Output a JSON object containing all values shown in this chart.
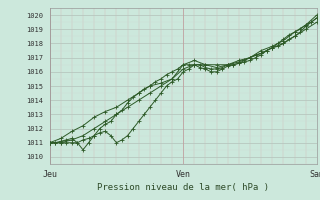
{
  "title": "",
  "xlabel": "Pression niveau de la mer( hPa )",
  "ylabel": "",
  "background_color": "#cce8dc",
  "plot_bg_color": "#cce8dc",
  "line_color": "#2d5a27",
  "ylim": [
    1009.5,
    1020.5
  ],
  "xlim": [
    0,
    48
  ],
  "xtick_positions": [
    0,
    24,
    48
  ],
  "xtick_labels": [
    "Jeu",
    "Ven",
    "Sam"
  ],
  "ytick_positions": [
    1010,
    1011,
    1012,
    1013,
    1014,
    1015,
    1016,
    1017,
    1018,
    1019,
    1020
  ],
  "series": [
    [
      0,
      1011,
      1,
      1011,
      2,
      1011,
      3,
      1011,
      4,
      1011,
      5,
      1011,
      6,
      1011.2,
      7,
      1011.3,
      8,
      1011.5,
      9,
      1011.7,
      10,
      1011.8,
      11,
      1011.5,
      12,
      1011.0,
      13,
      1011.2,
      14,
      1011.5,
      15,
      1012.0,
      16,
      1012.5,
      17,
      1013.0,
      18,
      1013.5,
      19,
      1014.0,
      20,
      1014.5,
      21,
      1015.0,
      22,
      1015.3,
      23,
      1015.5,
      24,
      1016.0,
      25,
      1016.2,
      26,
      1016.5,
      27,
      1016.5,
      28,
      1016.3,
      29,
      1016.2,
      30,
      1016.2,
      31,
      1016.3,
      32,
      1016.5,
      33,
      1016.5,
      34,
      1016.6,
      35,
      1016.8,
      36,
      1017.0,
      37,
      1017.2,
      38,
      1017.3,
      39,
      1017.5,
      40,
      1017.7,
      41,
      1017.8,
      42,
      1018.0,
      43,
      1018.3,
      44,
      1018.5,
      45,
      1018.8,
      46,
      1019.2,
      47,
      1019.5,
      48,
      1019.8
    ],
    [
      0,
      1011,
      1,
      1011,
      2,
      1011.1,
      3,
      1011.2,
      4,
      1011.3,
      5,
      1011.0,
      6,
      1010.5,
      7,
      1011.0,
      8,
      1011.5,
      9,
      1012.0,
      10,
      1012.3,
      11,
      1012.5,
      12,
      1013.0,
      13,
      1013.3,
      14,
      1013.8,
      15,
      1014.2,
      16,
      1014.5,
      17,
      1014.8,
      18,
      1015.0,
      19,
      1015.3,
      20,
      1015.5,
      21,
      1015.8,
      22,
      1016.0,
      23,
      1016.2,
      24,
      1016.5,
      25,
      1016.5,
      26,
      1016.5,
      27,
      1016.3,
      28,
      1016.2,
      29,
      1016.0,
      30,
      1016.0,
      31,
      1016.2,
      32,
      1016.4,
      33,
      1016.5,
      34,
      1016.6,
      35,
      1016.7,
      36,
      1016.8,
      37,
      1017.0,
      38,
      1017.2,
      39,
      1017.5,
      40,
      1017.7,
      41,
      1018.0,
      42,
      1018.3,
      43,
      1018.6,
      44,
      1018.8,
      45,
      1019.0,
      46,
      1019.3,
      47,
      1019.5,
      48,
      1019.8
    ],
    [
      0,
      1011,
      2,
      1011,
      4,
      1011.2,
      6,
      1011.5,
      8,
      1012.0,
      10,
      1012.5,
      12,
      1013.0,
      14,
      1013.5,
      16,
      1014.0,
      18,
      1014.5,
      20,
      1015.0,
      22,
      1015.5,
      24,
      1016.2,
      26,
      1016.5,
      28,
      1016.5,
      30,
      1016.5,
      32,
      1016.5,
      34,
      1016.7,
      36,
      1017.0,
      38,
      1017.3,
      40,
      1017.7,
      42,
      1018.0,
      44,
      1018.5,
      46,
      1019.0,
      48,
      1019.5
    ],
    [
      0,
      1011,
      2,
      1011.3,
      4,
      1011.8,
      6,
      1012.2,
      8,
      1012.8,
      10,
      1013.2,
      12,
      1013.5,
      14,
      1014.0,
      16,
      1014.5,
      18,
      1015.0,
      20,
      1015.2,
      22,
      1015.5,
      24,
      1016.5,
      26,
      1016.8,
      28,
      1016.5,
      30,
      1016.3,
      32,
      1016.5,
      34,
      1016.8,
      36,
      1017.0,
      38,
      1017.5,
      40,
      1017.8,
      42,
      1018.2,
      44,
      1018.8,
      46,
      1019.3,
      48,
      1020.0
    ]
  ]
}
